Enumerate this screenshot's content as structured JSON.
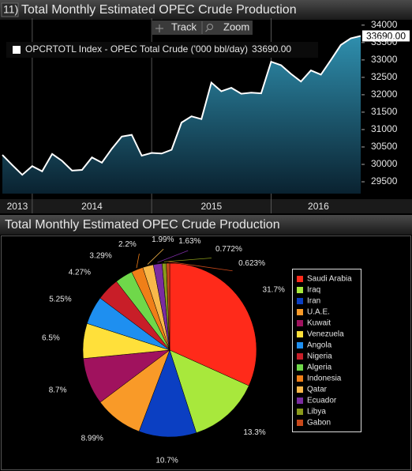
{
  "chart_data": [
    {
      "type": "area",
      "panel_number": "11)",
      "title": "Total Monthly Estimated OPEC Crude Production",
      "controls": [
        "Track",
        "Zoom"
      ],
      "categories": [
        "2013",
        null,
        null,
        "2014",
        null,
        null,
        null,
        null,
        null,
        null,
        null,
        null,
        null,
        null,
        null,
        "2015",
        null,
        null,
        null,
        null,
        null,
        null,
        null,
        null,
        null,
        null,
        null,
        "2016",
        null,
        null,
        null,
        null,
        null,
        null,
        null,
        null,
        null
      ],
      "series": [
        {
          "name": "OPCRTOTL Index - OPEC Total Crude ('000 bbl/day)",
          "color": "#ffffff",
          "values": [
            30270,
            29980,
            29700,
            29950,
            29800,
            30300,
            30100,
            29820,
            29840,
            30200,
            30050,
            30450,
            30800,
            30850,
            30250,
            30330,
            30310,
            30420,
            31200,
            31380,
            31300,
            32350,
            32100,
            32200,
            32030,
            32060,
            32040,
            32950,
            32850,
            32600,
            32380,
            32700,
            32580,
            33000,
            33430,
            33620,
            33690
          ],
          "last_label": "33690.00"
        }
      ],
      "ylim": [
        29160,
        34200
      ],
      "yticks": [
        29500,
        30000,
        30500,
        31000,
        31500,
        32000,
        32500,
        33000,
        33500,
        34000
      ],
      "y_axis_side": "right"
    },
    {
      "type": "pie",
      "title": "Total Monthly Estimated OPEC Crude Production",
      "categories": [
        "Saudi Arabia",
        "Iraq",
        "Iran",
        "U.A.E.",
        "Kuwait",
        "Venezuela",
        "Angola",
        "Nigeria",
        "Algeria",
        "Indonesia",
        "Qatar",
        "Ecuador",
        "Libya",
        "Gabon"
      ],
      "values": [
        31.7,
        13.3,
        10.7,
        8.99,
        8.7,
        6.5,
        5.25,
        4.27,
        3.29,
        2.2,
        1.99,
        1.63,
        0.772,
        0.623
      ],
      "value_labels": [
        "31.7%",
        "13.3%",
        "10.7%",
        "8.99%",
        "8.7%",
        "6.5%",
        "5.25%",
        "4.27%",
        "3.29%",
        "2.2%",
        "1.99%",
        "1.63%",
        "0.772%",
        "0.623%"
      ],
      "colors": [
        "#ff2a1a",
        "#a8e83c",
        "#0b3fc2",
        "#f99a28",
        "#a0125e",
        "#ffe03a",
        "#1e8ff0",
        "#c81e28",
        "#6fd84a",
        "#f07f18",
        "#f8b84a",
        "#7a2ca0",
        "#8a9a1a",
        "#c8481a"
      ],
      "legend": "right"
    }
  ]
}
